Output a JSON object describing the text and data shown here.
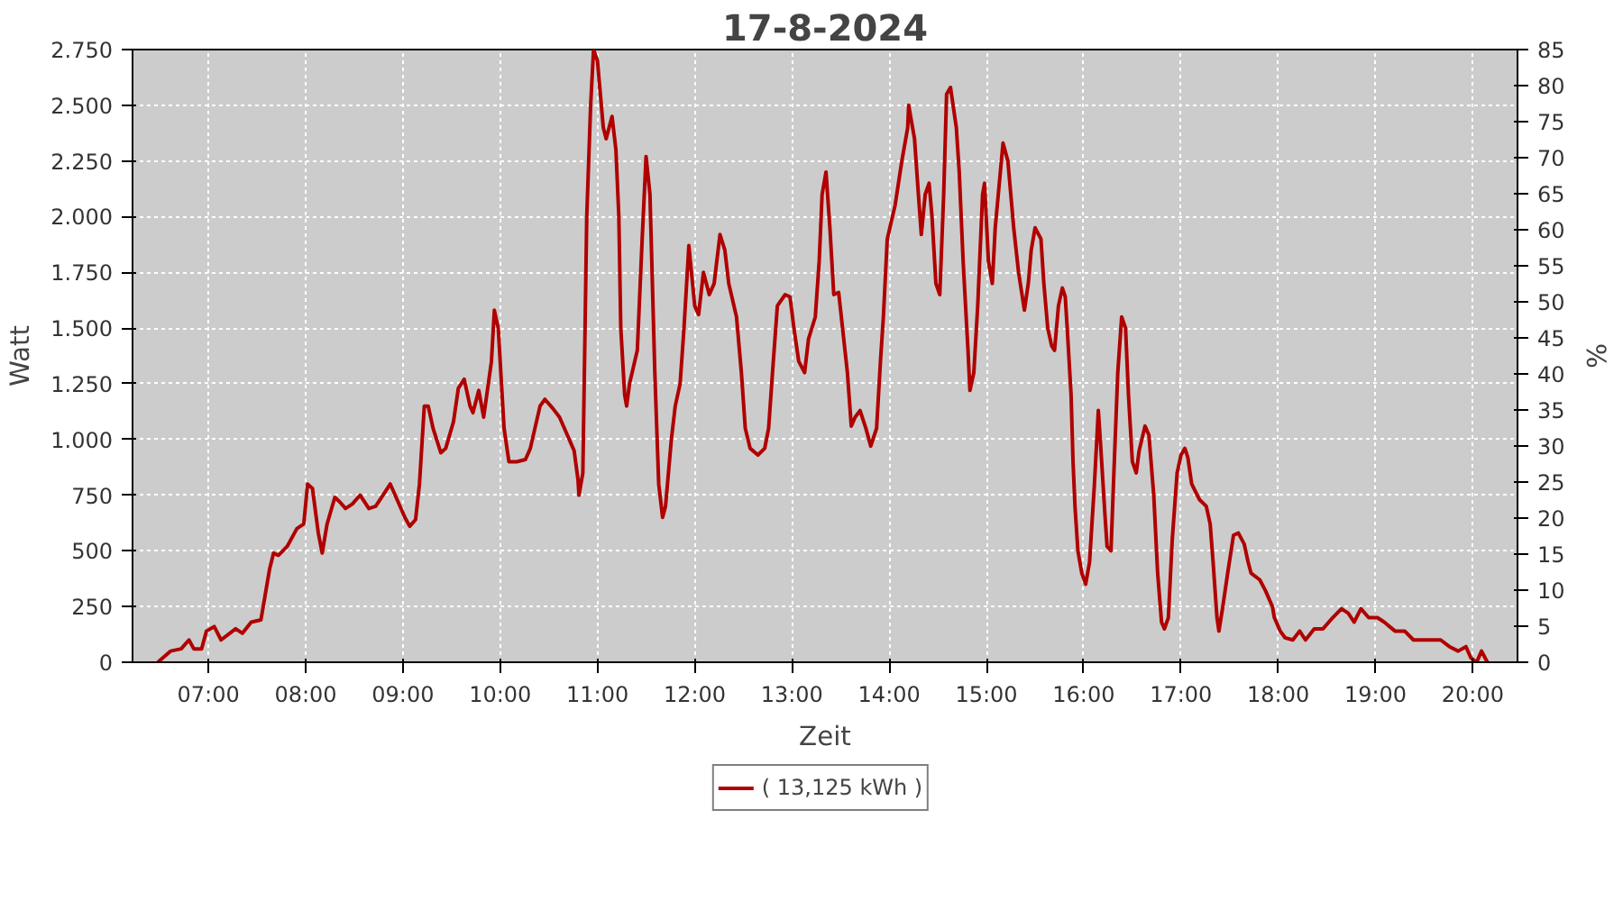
{
  "chart_data": {
    "type": "line",
    "title": "17-8-2024",
    "xlabel": "Zeit",
    "ylabel": "Watt",
    "y2label": "%",
    "x": [
      6.48,
      6.61,
      6.72,
      6.8,
      6.85,
      6.93,
      6.98,
      7.06,
      7.13,
      7.22,
      7.28,
      7.35,
      7.44,
      7.54,
      7.63,
      7.67,
      7.72,
      7.81,
      7.91,
      7.98,
      8.02,
      8.07,
      8.13,
      8.17,
      8.22,
      8.3,
      8.35,
      8.41,
      8.48,
      8.56,
      8.65,
      8.72,
      8.81,
      8.87,
      8.94,
      9.02,
      9.07,
      9.13,
      9.17,
      9.22,
      9.26,
      9.31,
      9.39,
      9.44,
      9.52,
      9.57,
      9.63,
      9.69,
      9.72,
      9.78,
      9.83,
      9.91,
      9.94,
      9.98,
      10.04,
      10.09,
      10.17,
      10.26,
      10.31,
      10.41,
      10.46,
      10.54,
      10.61,
      10.69,
      10.76,
      10.8,
      10.81,
      10.85,
      10.89,
      10.93,
      10.96,
      11.0,
      11.06,
      11.09,
      11.15,
      11.19,
      11.22,
      11.24,
      11.28,
      11.3,
      11.33,
      11.41,
      11.46,
      11.5,
      11.54,
      11.59,
      11.63,
      11.67,
      11.7,
      11.76,
      11.8,
      11.85,
      11.89,
      11.94,
      12.0,
      12.04,
      12.09,
      12.15,
      12.2,
      12.26,
      12.31,
      12.35,
      12.43,
      12.48,
      12.52,
      12.57,
      12.65,
      12.72,
      12.76,
      12.8,
      12.85,
      12.93,
      12.98,
      13.02,
      13.07,
      13.13,
      13.17,
      13.24,
      13.28,
      13.31,
      13.35,
      13.39,
      13.43,
      13.48,
      13.52,
      13.57,
      13.61,
      13.65,
      13.7,
      13.76,
      13.81,
      13.87,
      13.91,
      13.94,
      13.98,
      14.06,
      14.13,
      14.19,
      14.2,
      14.26,
      14.3,
      14.33,
      14.37,
      14.41,
      14.44,
      14.48,
      14.52,
      14.56,
      14.59,
      14.63,
      14.69,
      14.72,
      14.76,
      14.81,
      14.83,
      14.87,
      14.91,
      14.96,
      14.98,
      15.02,
      15.06,
      15.09,
      15.17,
      15.22,
      15.28,
      15.33,
      15.39,
      15.43,
      15.46,
      15.5,
      15.56,
      15.59,
      15.63,
      15.67,
      15.7,
      15.74,
      15.78,
      15.81,
      15.83,
      15.87,
      15.89,
      15.91,
      15.94,
      15.98,
      16.02,
      16.06,
      16.11,
      16.15,
      16.17,
      16.22,
      16.24,
      16.28,
      16.31,
      16.35,
      16.39,
      16.43,
      16.46,
      16.5,
      16.54,
      16.57,
      16.63,
      16.67,
      16.72,
      16.76,
      16.8,
      16.83,
      16.87,
      16.91,
      16.96,
      17.0,
      17.04,
      17.07,
      17.11,
      17.19,
      17.26,
      17.3,
      17.33,
      17.37,
      17.39,
      17.43,
      17.48,
      17.54,
      17.59,
      17.65,
      17.69,
      17.72,
      17.81,
      17.87,
      17.94,
      17.96,
      18.02,
      18.07,
      18.15,
      18.22,
      18.28,
      18.37,
      18.46,
      18.56,
      18.65,
      18.72,
      18.78,
      18.85,
      18.93,
      19.02,
      19.09,
      19.2,
      19.3,
      19.39,
      19.48,
      19.57,
      19.67,
      19.76,
      19.85,
      19.93,
      19.98,
      20.04,
      20.09,
      20.15
    ],
    "series": [
      {
        "name": "( 13,125 kWh )",
        "color": "#b00000",
        "values": [
          0,
          50,
          60,
          100,
          60,
          60,
          140,
          160,
          100,
          130,
          150,
          130,
          180,
          190,
          420,
          490,
          480,
          520,
          600,
          620,
          800,
          780,
          580,
          490,
          620,
          740,
          720,
          690,
          710,
          750,
          690,
          700,
          760,
          800,
          730,
          650,
          610,
          640,
          800,
          1150,
          1150,
          1050,
          940,
          960,
          1080,
          1230,
          1270,
          1150,
          1120,
          1220,
          1100,
          1350,
          1580,
          1500,
          1050,
          900,
          900,
          910,
          960,
          1150,
          1180,
          1140,
          1100,
          1020,
          950,
          820,
          750,
          850,
          2000,
          2500,
          2750,
          2700,
          2400,
          2350,
          2450,
          2300,
          2000,
          1500,
          1200,
          1150,
          1250,
          1400,
          1900,
          2270,
          2100,
          1300,
          800,
          650,
          700,
          1000,
          1150,
          1250,
          1500,
          1870,
          1600,
          1560,
          1750,
          1650,
          1700,
          1920,
          1850,
          1700,
          1550,
          1300,
          1050,
          960,
          930,
          960,
          1050,
          1300,
          1600,
          1650,
          1640,
          1500,
          1350,
          1300,
          1450,
          1550,
          1800,
          2100,
          2200,
          1950,
          1650,
          1660,
          1500,
          1300,
          1060,
          1100,
          1130,
          1050,
          970,
          1050,
          1350,
          1550,
          1900,
          2050,
          2250,
          2400,
          2500,
          2350,
          2100,
          1920,
          2100,
          2150,
          2000,
          1700,
          1650,
          2100,
          2550,
          2580,
          2400,
          2200,
          1800,
          1400,
          1220,
          1300,
          1600,
          2100,
          2150,
          1800,
          1700,
          1950,
          2330,
          2250,
          1950,
          1750,
          1580,
          1700,
          1850,
          1950,
          1900,
          1700,
          1500,
          1420,
          1400,
          1600,
          1680,
          1640,
          1500,
          1200,
          900,
          700,
          500,
          400,
          350,
          450,
          800,
          1130,
          1000,
          650,
          520,
          500,
          850,
          1300,
          1550,
          1500,
          1200,
          900,
          850,
          950,
          1060,
          1020,
          750,
          400,
          180,
          150,
          200,
          550,
          850,
          930,
          960,
          920,
          800,
          730,
          700,
          620,
          450,
          200,
          140,
          250,
          400,
          570,
          580,
          530,
          450,
          400,
          370,
          320,
          250,
          200,
          140,
          110,
          100,
          140,
          100,
          150,
          150,
          200,
          240,
          220,
          180,
          240,
          200,
          200,
          180,
          140,
          140,
          100,
          100,
          100,
          100,
          70,
          50,
          70,
          20,
          0,
          50,
          0
        ]
      }
    ],
    "xlim": [
      6.22,
      20.46
    ],
    "xticks": [
      {
        "value": 7,
        "label": "07:00"
      },
      {
        "value": 8,
        "label": "08:00"
      },
      {
        "value": 9,
        "label": "09:00"
      },
      {
        "value": 10,
        "label": "10:00"
      },
      {
        "value": 11,
        "label": "11:00"
      },
      {
        "value": 12,
        "label": "12:00"
      },
      {
        "value": 13,
        "label": "13:00"
      },
      {
        "value": 14,
        "label": "14:00"
      },
      {
        "value": 15,
        "label": "15:00"
      },
      {
        "value": 16,
        "label": "16:00"
      },
      {
        "value": 17,
        "label": "17:00"
      },
      {
        "value": 18,
        "label": "18:00"
      },
      {
        "value": 19,
        "label": "19:00"
      },
      {
        "value": 20,
        "label": "20:00"
      }
    ],
    "ylim": [
      0,
      2750
    ],
    "yticks": [
      0,
      250,
      500,
      750,
      {
        "value": 1000,
        "label": "1.000"
      },
      {
        "value": 1250,
        "label": "1.250"
      },
      {
        "value": 1500,
        "label": "1.500"
      },
      {
        "value": 1750,
        "label": "1.750"
      },
      {
        "value": 2000,
        "label": "2.000"
      },
      {
        "value": 2250,
        "label": "2.250"
      },
      {
        "value": 2500,
        "label": "2.500"
      },
      {
        "value": 2750,
        "label": "2.750"
      }
    ],
    "y2lim": [
      0,
      85
    ],
    "y2ticks": [
      0,
      5,
      10,
      15,
      20,
      25,
      30,
      35,
      40,
      45,
      50,
      55,
      60,
      65,
      70,
      75,
      80,
      85
    ],
    "grid": true,
    "legend": "bottom",
    "line_style": "solid"
  }
}
